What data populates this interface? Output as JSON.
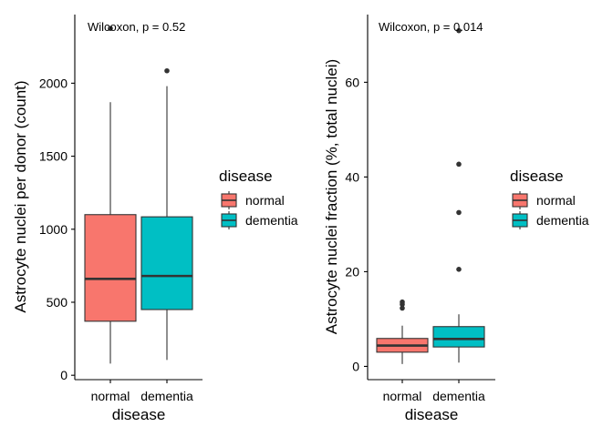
{
  "chart_data": [
    {
      "type": "box",
      "xlabel": "disease",
      "ylabel": "Astrocyte nuclei per donor (count)",
      "annotation": "Wilcoxon, p = 0.52",
      "ylim": [
        -30,
        2470
      ],
      "yticks": [
        0,
        500,
        1000,
        1500,
        2000
      ],
      "categories": [
        "normal",
        "dementia"
      ],
      "boxes": [
        {
          "group": "normal",
          "whisker_low": 80,
          "q1": 370,
          "median": 660,
          "q3": 1100,
          "whisker_high": 1870,
          "outliers": [
            2375
          ]
        },
        {
          "group": "dementia",
          "whisker_low": 105,
          "q1": 450,
          "median": 680,
          "q3": 1085,
          "whisker_high": 1980,
          "outliers": [
            2085
          ]
        }
      ],
      "legend": {
        "title": "disease",
        "entries": [
          "normal",
          "dementia"
        ]
      }
    },
    {
      "type": "box",
      "xlabel": "disease",
      "ylabel": "Astrocyte nuclei fraction (%, total nuclei)",
      "annotation": "Wilcoxon, p = 0.014",
      "ylim": [
        -2.8,
        74.3
      ],
      "yticks": [
        0,
        20,
        40,
        60
      ],
      "categories": [
        "normal",
        "dementia"
      ],
      "boxes": [
        {
          "group": "normal",
          "whisker_low": 0.5,
          "q1": 3.0,
          "median": 4.4,
          "q3": 5.9,
          "whisker_high": 8.6,
          "outliers": [
            12.3,
            13.1,
            13.6
          ]
        },
        {
          "group": "dementia",
          "whisker_low": 0.8,
          "q1": 4.1,
          "median": 5.8,
          "q3": 8.4,
          "whisker_high": 11.0,
          "outliers": [
            20.5,
            32.5,
            42.7,
            70.9
          ]
        }
      ],
      "legend": {
        "title": "disease",
        "entries": [
          "normal",
          "dementia"
        ]
      }
    }
  ],
  "colors": {
    "normal": "#f8766d",
    "dementia": "#00bfc4",
    "line": "#333333",
    "axis": "#000000"
  }
}
